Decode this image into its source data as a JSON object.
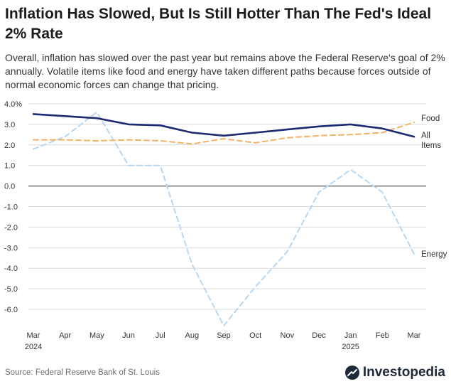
{
  "header": {
    "title": "Inflation Has Slowed, But Is Still Hotter Than The Fed's Ideal 2% Rate",
    "subtitle": "Overall, inflation has slowed over the past year but remains above the Federal Reserve's goal of 2% annually. Volatile items like food and energy have taken different paths because forces outside of normal economic forces can change that pricing."
  },
  "footer": {
    "source": "Source: Federal Reserve Bank of St. Louis",
    "brand": "Investopedia",
    "logo_icon": "investopedia-logo-icon"
  },
  "chart_data": {
    "type": "line",
    "categories": [
      "Mar",
      "Apr",
      "May",
      "Jun",
      "Jul",
      "Aug",
      "Sep",
      "Oct",
      "Nov",
      "Dec",
      "Jan",
      "Feb",
      "Mar"
    ],
    "year_labels": [
      "2024",
      "",
      "",
      "",
      "",
      "",
      "",
      "",
      "",
      "",
      "2025",
      "",
      ""
    ],
    "y_ticks": [
      4.0,
      3.0,
      2.0,
      1.0,
      0.0,
      -1.0,
      -2.0,
      -3.0,
      -4.0,
      -5.0,
      -6.0
    ],
    "y_tick_labels": [
      "4.0%",
      "3.0",
      "2.0",
      "1.0",
      "0.0",
      "-1.0",
      "-2.0",
      "-3.0",
      "-4.0",
      "-5.0",
      "-6.0"
    ],
    "ylim": [
      -6.9,
      4.0
    ],
    "grid": true,
    "zero_line": true,
    "series": [
      {
        "name": "All Items",
        "label": "All\nItems",
        "color": "#1c2b72",
        "style": "solid",
        "values": [
          3.5,
          3.4,
          3.3,
          3.0,
          2.95,
          2.6,
          2.45,
          2.6,
          2.75,
          2.9,
          3.0,
          2.8,
          2.4
        ]
      },
      {
        "name": "Food",
        "label": "Food",
        "color": "#f2b266",
        "style": "dashed",
        "values": [
          2.25,
          2.25,
          2.2,
          2.25,
          2.2,
          2.05,
          2.3,
          2.1,
          2.35,
          2.45,
          2.5,
          2.6,
          3.1
        ]
      },
      {
        "name": "Energy",
        "label": "Energy",
        "color": "#b7d7f2",
        "style": "dashed",
        "values": [
          1.8,
          2.4,
          3.6,
          1.0,
          1.0,
          -3.8,
          -6.8,
          -4.9,
          -3.2,
          -0.3,
          0.8,
          -0.3,
          -3.3
        ]
      }
    ]
  }
}
